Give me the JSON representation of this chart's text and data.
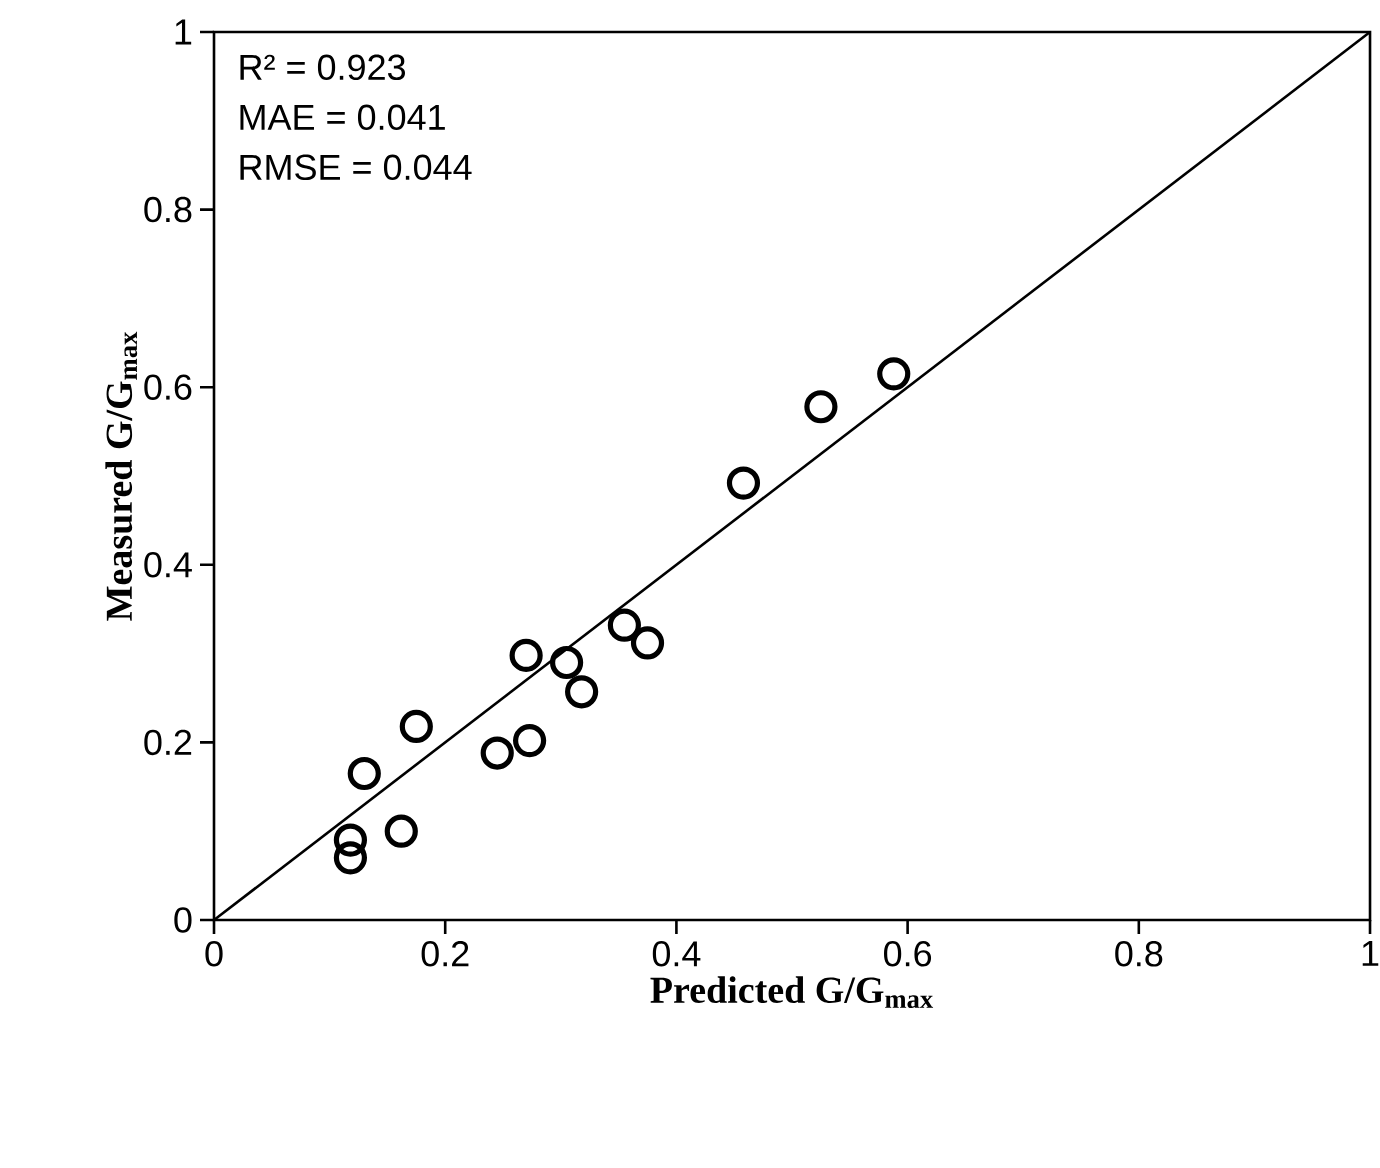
{
  "chart_data": {
    "type": "scatter",
    "xlabel": "Predicted G/G$_{max}$",
    "ylabel": "Measured G/G$_{max}$",
    "xlim": [
      0,
      1
    ],
    "ylim": [
      0,
      1
    ],
    "xticks": [
      0,
      0.2,
      0.4,
      0.6,
      0.8,
      1
    ],
    "yticks": [
      0,
      0.2,
      0.4,
      0.6,
      0.8,
      1
    ],
    "grid": false,
    "marker": "circle",
    "annotations": [
      "R² = 0.923",
      "MAE = 0.041",
      "RMSE = 0.044"
    ],
    "series": [
      {
        "color": "#000000",
        "x": [
          0.118,
          0.118,
          0.13,
          0.162,
          0.175,
          0.245,
          0.27,
          0.273,
          0.305,
          0.318,
          0.355,
          0.375,
          0.458,
          0.525,
          0.588
        ],
        "values": [
          0.07,
          0.09,
          0.165,
          0.1,
          0.218,
          0.188,
          0.298,
          0.202,
          0.29,
          0.257,
          0.332,
          0.312,
          0.492,
          0.578,
          0.615
        ]
      },
      {
        "type": "line",
        "color": "#000000",
        "marker": "none",
        "line_style": "solid",
        "x": [
          0,
          1
        ],
        "values": [
          0,
          1
        ]
      }
    ]
  }
}
